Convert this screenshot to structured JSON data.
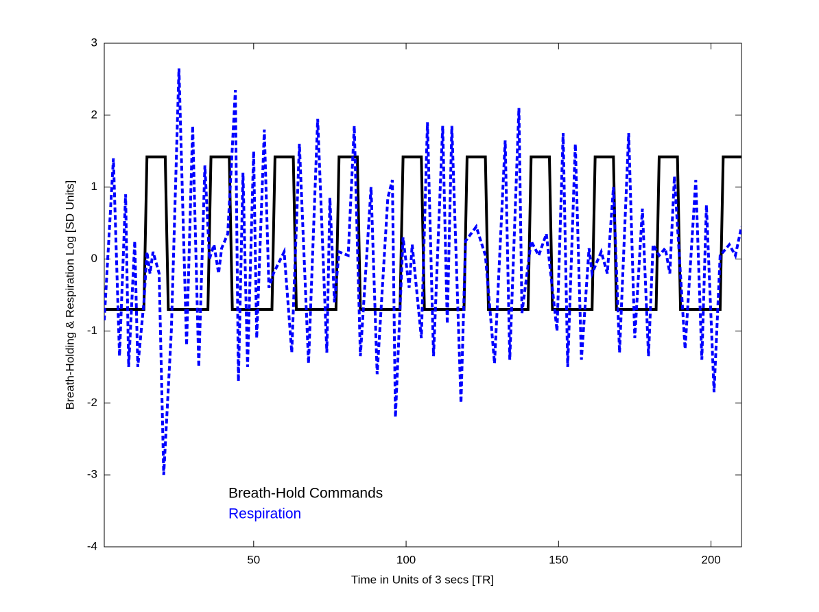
{
  "chart_data": {
    "type": "line",
    "xlabel": "Time in Units of 3 secs [TR]",
    "ylabel": "Breath-Holding & Respiration Log [SD Units]",
    "xlim": [
      1,
      210
    ],
    "ylim": [
      -4,
      3
    ],
    "xticks": [
      50,
      100,
      150,
      200
    ],
    "yticks": [
      -4,
      -3,
      -2,
      -1,
      0,
      1,
      2,
      3
    ],
    "box": true,
    "series": [
      {
        "name": "Breath-Hold Commands",
        "color": "#000000",
        "style": "solid",
        "x": [
          1,
          14,
          15,
          21,
          22,
          35,
          36,
          42,
          43,
          56,
          57,
          63,
          64,
          77,
          78,
          84,
          85,
          98,
          99,
          105,
          106,
          119,
          120,
          126,
          127,
          140,
          141,
          147,
          148,
          161,
          162,
          168,
          169,
          182,
          183,
          189,
          190,
          203,
          204,
          210
        ],
        "values": [
          -0.7,
          -0.7,
          1.42,
          1.42,
          -0.7,
          -0.7,
          1.42,
          1.42,
          -0.7,
          -0.7,
          1.42,
          1.42,
          -0.7,
          -0.7,
          1.42,
          1.42,
          -0.7,
          -0.7,
          1.42,
          1.42,
          -0.7,
          -0.7,
          1.42,
          1.42,
          -0.7,
          -0.7,
          1.42,
          1.42,
          -0.7,
          -0.7,
          1.42,
          1.42,
          -0.7,
          -0.7,
          1.42,
          1.42,
          -0.7,
          -0.7,
          1.42,
          1.42
        ]
      },
      {
        "name": "Respiration",
        "color": "#0000ff",
        "style": "dashed",
        "x": [
          1,
          4,
          6,
          8,
          9,
          11,
          12,
          14,
          15,
          16,
          17,
          19,
          20.5,
          23,
          25.5,
          28,
          30,
          32,
          34,
          35.5,
          37,
          38.5,
          39.5,
          41.5,
          44,
          45,
          46.5,
          48,
          50,
          51,
          53.5,
          55,
          56.5,
          60,
          62.5,
          65,
          68,
          71,
          74,
          75,
          76.5,
          78,
          81,
          83,
          85,
          88.5,
          90.5,
          94,
          95.5,
          96.5,
          99,
          101,
          102,
          105,
          107,
          109,
          112,
          113.5,
          115,
          118,
          119.5,
          123,
          126,
          129,
          132.5,
          134,
          137,
          138,
          141,
          143.5,
          146,
          149.5,
          151.5,
          153,
          155.5,
          157.5,
          160,
          161,
          164,
          166,
          168,
          170,
          173,
          175,
          177.5,
          179.5,
          181,
          183,
          185,
          186.5,
          188,
          191.5,
          195,
          197,
          198.5,
          201,
          203,
          206,
          208,
          210
        ],
        "values": [
          -0.85,
          1.4,
          -1.35,
          0.9,
          -1.5,
          0.25,
          -1.5,
          -0.6,
          0.1,
          -0.2,
          0.1,
          -0.2,
          -3.0,
          -1.0,
          2.65,
          -1.2,
          1.85,
          -1.5,
          1.3,
          0,
          0.2,
          -0.2,
          0.15,
          0.35,
          2.35,
          -1.7,
          1.2,
          -1.5,
          1.5,
          -1.1,
          1.8,
          -0.4,
          -0.2,
          0.1,
          -1.3,
          1.6,
          -1.45,
          1.95,
          -1.3,
          0.85,
          -0.6,
          0.1,
          0.05,
          1.85,
          -1.35,
          1.0,
          -1.6,
          0.85,
          1.1,
          -2.2,
          0.3,
          -0.4,
          0.2,
          -1.1,
          1.9,
          -1.35,
          1.85,
          -0.9,
          1.85,
          -2.0,
          0.25,
          0.45,
          0.05,
          -1.45,
          1.65,
          -1.4,
          2.1,
          -0.75,
          0.25,
          0.05,
          0.35,
          -1.0,
          1.75,
          -1.5,
          1.6,
          -1.4,
          0.15,
          -0.2,
          0.1,
          -0.2,
          1.0,
          -1.3,
          1.75,
          -1.1,
          0.7,
          -1.35,
          0.2,
          0.05,
          0.15,
          -0.2,
          1.15,
          -1.25,
          1.1,
          -1.4,
          0.75,
          -1.85,
          0.05,
          0.2,
          0.05,
          0.45
        ]
      }
    ]
  }
}
